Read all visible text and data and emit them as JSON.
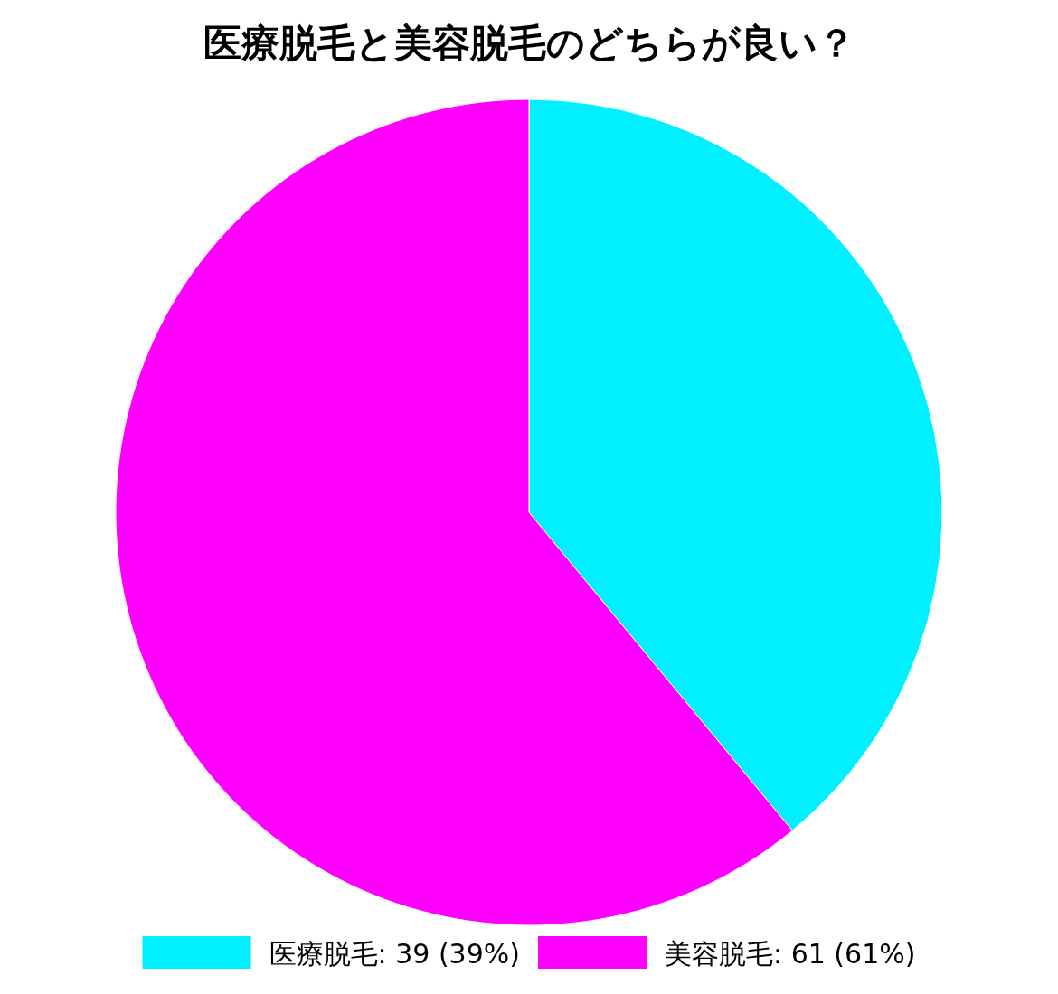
{
  "chart_data": {
    "type": "pie",
    "title": "医療脱毛と美容脱毛のどちらが良い？",
    "categories": [
      "医療脱毛",
      "美容脱毛"
    ],
    "values": [
      39,
      61
    ],
    "colors": [
      "#00f0ff",
      "#ff00ff"
    ],
    "value_labels": [
      "39 (39%)",
      "61 (61%)"
    ],
    "legend": "bottom"
  }
}
